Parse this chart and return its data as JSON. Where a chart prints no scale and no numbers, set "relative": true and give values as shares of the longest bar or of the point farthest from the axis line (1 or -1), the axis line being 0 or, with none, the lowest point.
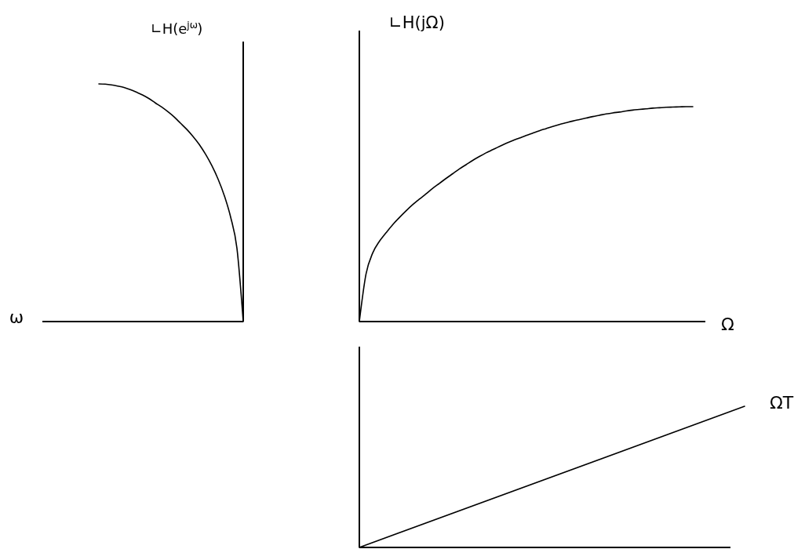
{
  "chart_data": [
    {
      "type": "line",
      "ylabel": "∟H(e$^{jω}$)",
      "xlabel": "ω",
      "relative": true,
      "categories": [
        null,
        null,
        null,
        null,
        null,
        null,
        null,
        null,
        null,
        null,
        null,
        null,
        null,
        null,
        null,
        null,
        null,
        null,
        null,
        null,
        null,
        null,
        null,
        null
      ],
      "series": [
        {
          "color": "#000000",
          "values": [
            1,
            0.999,
            0.996,
            0.991,
            0.985,
            0.976,
            0.965,
            0.953,
            0.938,
            0.92,
            0.903,
            0.883,
            0.861,
            0.835,
            0.809,
            0.779,
            0.745,
            0.704,
            0.656,
            0.599,
            0.529,
            0.439,
            0.308,
            0
          ]
        }
      ]
    },
    {
      "type": "line",
      "ylabel": "∟H(jΩ)",
      "xlabel": "Ω",
      "relative": true,
      "categories": [
        null,
        null,
        null,
        null,
        null,
        null,
        null,
        null,
        null,
        null,
        null,
        null,
        null,
        null,
        null,
        null,
        null,
        null,
        null,
        null,
        null,
        null,
        null,
        null,
        null,
        null,
        null,
        null,
        null,
        null,
        null,
        null,
        null,
        null,
        null,
        null,
        null,
        null,
        null,
        null,
        null,
        null,
        null,
        null,
        null,
        null,
        null,
        null,
        null,
        null,
        null
      ],
      "series": [
        {
          "color": "#000000",
          "values": [
            0,
            0.221,
            0.319,
            0.373,
            0.413,
            0.451,
            0.484,
            0.515,
            0.544,
            0.57,
            0.594,
            0.62,
            0.643,
            0.666,
            0.688,
            0.71,
            0.73,
            0.75,
            0.768,
            0.785,
            0.8,
            0.815,
            0.829,
            0.842,
            0.854,
            0.866,
            0.877,
            0.888,
            0.898,
            0.908,
            0.917,
            0.925,
            0.933,
            0.94,
            0.947,
            0.954,
            0.96,
            0.966,
            0.971,
            0.975,
            0.98,
            0.984,
            0.987,
            0.99,
            0.993,
            0.995,
            0.997,
            0.998,
            0.999,
            1,
            1
          ]
        }
      ]
    },
    {
      "type": "line",
      "relative": true,
      "categories": [
        null,
        null
      ],
      "series": [
        {
          "name": "ΩT",
          "color": "#000000",
          "values": [
            0,
            1
          ]
        }
      ]
    }
  ]
}
